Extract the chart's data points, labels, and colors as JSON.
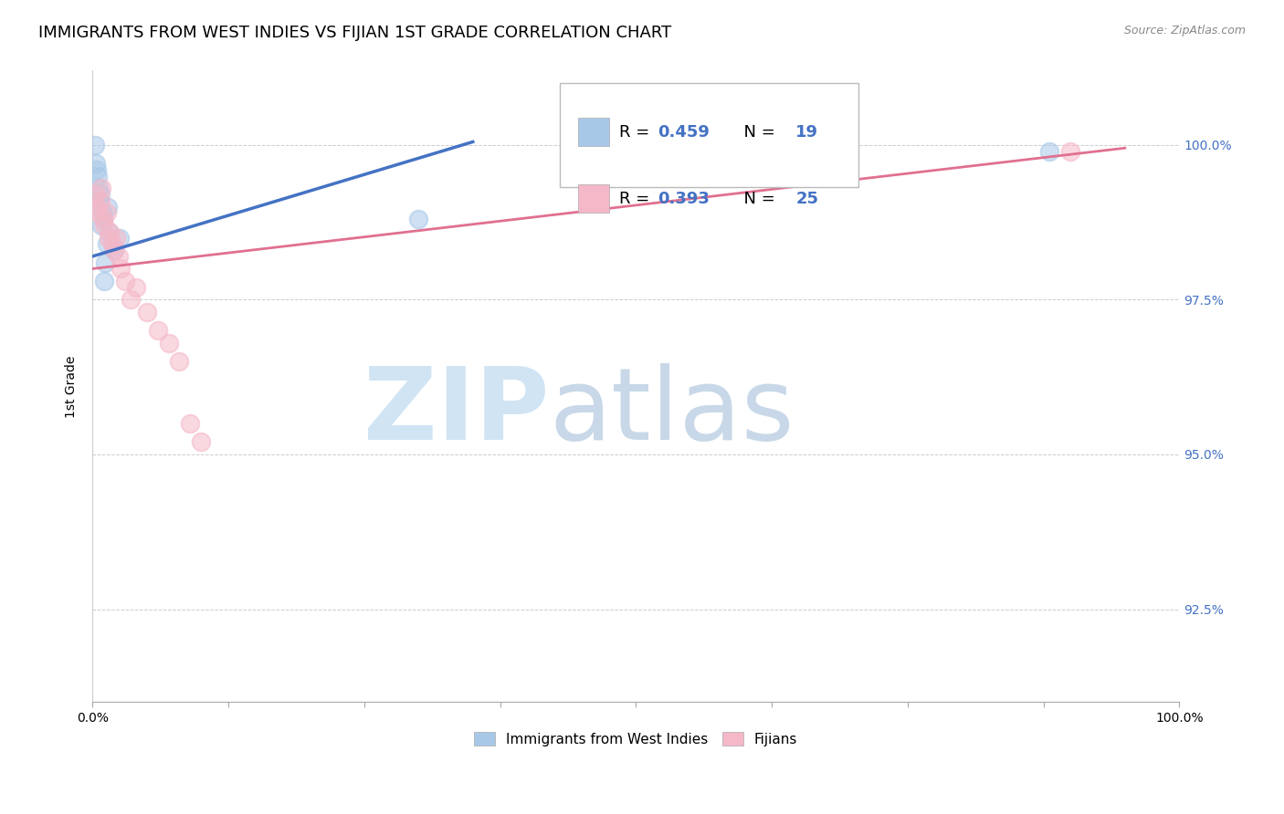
{
  "title": "IMMIGRANTS FROM WEST INDIES VS FIJIAN 1ST GRADE CORRELATION CHART",
  "source": "Source: ZipAtlas.com",
  "ylabel": "1st Grade",
  "xlim": [
    0.0,
    100.0
  ],
  "ylim": [
    91.0,
    101.2
  ],
  "yticks": [
    92.5,
    95.0,
    97.5,
    100.0
  ],
  "ytick_labels": [
    "92.5%",
    "95.0%",
    "97.5%",
    "100.0%"
  ],
  "xticks": [
    0.0,
    12.5,
    25.0,
    37.5,
    50.0,
    62.5,
    75.0,
    87.5,
    100.0
  ],
  "xtick_labels": [
    "0.0%",
    "",
    "",
    "",
    "",
    "",
    "",
    "",
    "100.0%"
  ],
  "blue_scatter_x": [
    0.2,
    0.3,
    0.4,
    0.5,
    0.6,
    0.6,
    0.7,
    0.8,
    0.9,
    1.0,
    1.1,
    1.2,
    1.3,
    1.4,
    1.5,
    2.0,
    2.5,
    30.0,
    88.0
  ],
  "blue_scatter_y": [
    100.0,
    99.7,
    99.6,
    99.5,
    99.3,
    99.1,
    99.2,
    98.7,
    98.9,
    98.8,
    97.8,
    98.1,
    98.4,
    99.0,
    98.6,
    98.3,
    98.5,
    98.8,
    99.9
  ],
  "pink_scatter_x": [
    0.2,
    0.4,
    0.5,
    0.7,
    0.8,
    1.0,
    1.1,
    1.3,
    1.5,
    1.6,
    1.8,
    2.0,
    2.2,
    2.4,
    2.6,
    3.0,
    3.5,
    4.0,
    5.0,
    6.0,
    7.0,
    8.0,
    9.0,
    10.0,
    90.0
  ],
  "pink_scatter_y": [
    99.2,
    99.0,
    98.9,
    99.1,
    99.3,
    98.8,
    98.7,
    98.9,
    98.5,
    98.6,
    98.4,
    98.3,
    98.5,
    98.2,
    98.0,
    97.8,
    97.5,
    97.7,
    97.3,
    97.0,
    96.8,
    96.5,
    95.5,
    95.2,
    99.9
  ],
  "blue_line_x": [
    0.0,
    35.0
  ],
  "blue_line_y": [
    98.2,
    100.05
  ],
  "pink_line_x": [
    0.0,
    95.0
  ],
  "pink_line_y": [
    98.0,
    99.95
  ],
  "blue_R": "0.459",
  "blue_N": "19",
  "pink_R": "0.393",
  "pink_N": "25",
  "blue_color": "#a8c8e8",
  "pink_color": "#f5b8c8",
  "blue_line_color": "#4472c4",
  "pink_line_color": "#e07090",
  "marker_size": 200,
  "marker_lw": 1.5,
  "legend_label_blue": "Immigrants from West Indies",
  "legend_label_pink": "Fijians",
  "watermark_zip": "ZIP",
  "watermark_atlas": "atlas",
  "watermark_color_zip": "#d0e4f4",
  "watermark_color_atlas": "#c8d8e8",
  "right_axis_color": "#4472c4",
  "background_color": "#ffffff",
  "grid_color": "#cccccc",
  "title_fontsize": 13,
  "axis_label_fontsize": 10,
  "source_color": "#888888"
}
